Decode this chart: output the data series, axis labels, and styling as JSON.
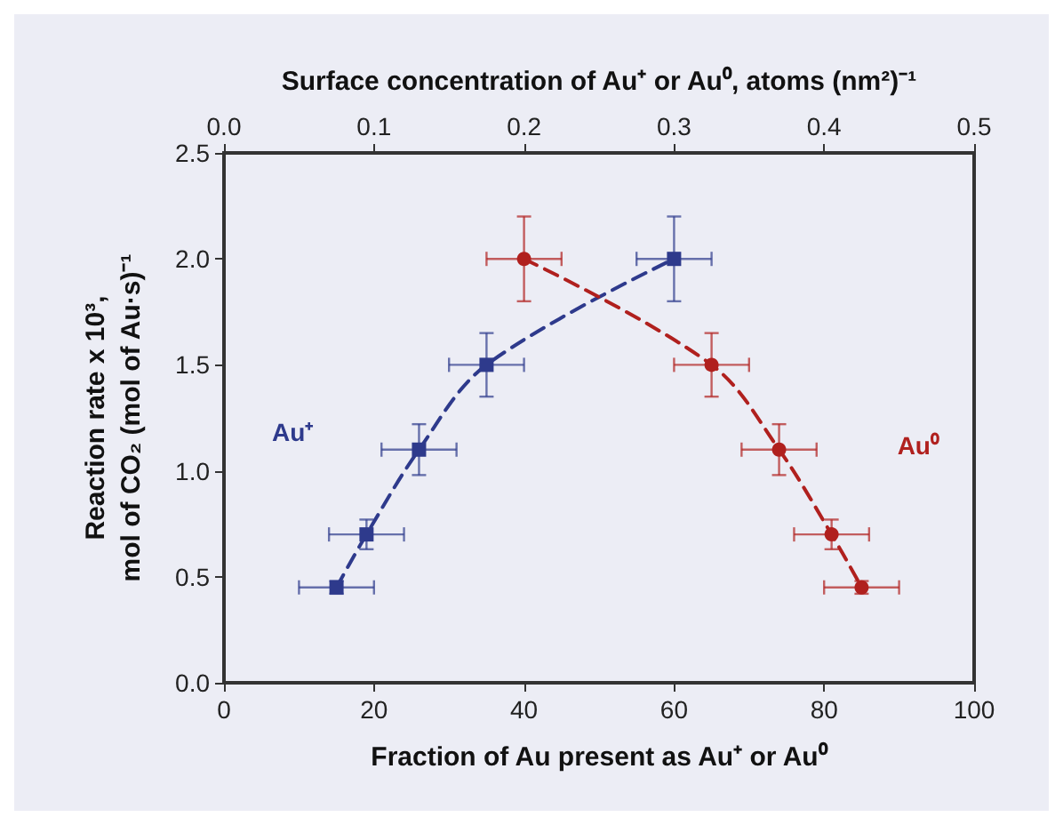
{
  "chart_data": {
    "type": "line",
    "xlabel": "Fraction of Au present as Au⁺ or Au⁰",
    "ylabel": "Reaction rate x 10³,\nmol of CO₂ (mol of Au·s)⁻¹",
    "x2label": "Surface concentration of Au⁺ or Au⁰, atoms (nm²)⁻¹",
    "xlim": [
      0,
      100
    ],
    "xticks": [
      0,
      20,
      40,
      60,
      80,
      100
    ],
    "x2lim": [
      0,
      0.5
    ],
    "x2ticks": [
      {
        "value": 0,
        "label": "0.0"
      },
      {
        "value": 0.1,
        "label": "0.1"
      },
      {
        "value": 0.2,
        "label": "0.2"
      },
      {
        "value": 0.3,
        "label": "0.3"
      },
      {
        "value": 0.4,
        "label": "0.4"
      },
      {
        "value": 0.5,
        "label": "0.5"
      }
    ],
    "ylim": [
      0,
      2.5
    ],
    "yticks": [
      {
        "value": 0,
        "label": "0.0"
      },
      {
        "value": 0.5,
        "label": "0.5"
      },
      {
        "value": 1,
        "label": "1.0"
      },
      {
        "value": 1.5,
        "label": "1.5"
      },
      {
        "value": 2,
        "label": "2.0"
      },
      {
        "value": 2.5,
        "label": "2.5"
      }
    ],
    "grid": false,
    "legend": false,
    "line_style": "dashed",
    "series": [
      {
        "name": "Au⁺",
        "color": "#2e3a8c",
        "marker": "square",
        "x": [
          15,
          19,
          26,
          35,
          60
        ],
        "values": [
          0.45,
          0.7,
          1.1,
          1.5,
          2.0
        ],
        "errors": [
          0.03,
          0.07,
          0.12,
          0.15,
          0.2
        ],
        "xerrors": [
          5,
          5,
          5,
          5,
          5
        ]
      },
      {
        "name": "Au⁰",
        "color": "#b0201e",
        "marker": "circle",
        "x": [
          40,
          65,
          74,
          81,
          85
        ],
        "values": [
          2.0,
          1.5,
          1.1,
          0.7,
          0.45
        ],
        "errors": [
          0.2,
          0.15,
          0.12,
          0.07,
          0.03
        ],
        "xerrors": [
          5,
          5,
          5,
          5,
          5
        ]
      }
    ]
  }
}
